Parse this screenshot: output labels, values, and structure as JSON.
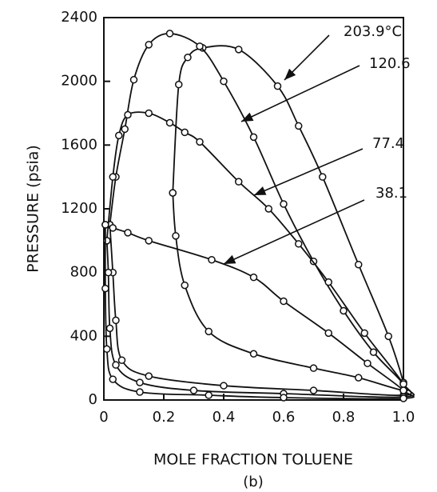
{
  "chart_data": {
    "type": "line",
    "x_label": "MOLE FRACTION TOLUENE",
    "y_label": "PRESSURE (psia)",
    "caption": "(b)",
    "xlim": [
      0,
      1
    ],
    "ylim": [
      0,
      2400
    ],
    "xticks": [
      0,
      0.2,
      0.4,
      0.6,
      0.8,
      {
        "value": 1,
        "label": "1.0"
      }
    ],
    "yticks": [
      0,
      400,
      800,
      1200,
      1600,
      2000,
      2400
    ],
    "color": "#111111",
    "series": [
      {
        "name": "203.9°C",
        "x": [
          0.23,
          0.25,
          0.28,
          0.33,
          0.45,
          0.58,
          0.65,
          0.73,
          0.85,
          0.95,
          1.0,
          1.0,
          0.85,
          0.7,
          0.5,
          0.35,
          0.27,
          0.24,
          0.23
        ],
        "y": [
          1300,
          1980,
          2150,
          2210,
          2200,
          1970,
          1720,
          1400,
          850,
          400,
          110,
          60,
          140,
          200,
          290,
          430,
          720,
          1030,
          1300
        ]
      },
      {
        "name": "120.6",
        "x": [
          0.02,
          0.04,
          0.07,
          0.1,
          0.15,
          0.22,
          0.32,
          0.4,
          0.5,
          0.6,
          0.7,
          0.8,
          0.9,
          1.0,
          1.0,
          0.7,
          0.4,
          0.15,
          0.06,
          0.04,
          0.03,
          0.02
        ],
        "y": [
          1100,
          1400,
          1700,
          2010,
          2230,
          2300,
          2220,
          2000,
          1650,
          1230,
          870,
          560,
          300,
          100,
          30,
          60,
          90,
          150,
          250,
          500,
          800,
          1100
        ]
      },
      {
        "name": "77.4",
        "x": [
          0.01,
          0.03,
          0.05,
          0.08,
          0.15,
          0.22,
          0.27,
          0.32,
          0.45,
          0.55,
          0.65,
          0.75,
          0.87,
          1.0,
          1.0,
          0.6,
          0.3,
          0.12,
          0.04,
          0.02,
          0.015,
          0.01
        ],
        "y": [
          1000,
          1400,
          1660,
          1790,
          1800,
          1740,
          1680,
          1620,
          1370,
          1200,
          980,
          740,
          420,
          100,
          20,
          40,
          60,
          110,
          220,
          450,
          800,
          1000
        ]
      },
      {
        "name": "38.1",
        "x": [
          0.005,
          0.03,
          0.08,
          0.15,
          0.36,
          0.5,
          0.6,
          0.75,
          0.88,
          1.0,
          1.0,
          0.6,
          0.35,
          0.12,
          0.03,
          0.01,
          0.005,
          0.005
        ],
        "y": [
          1100,
          1080,
          1050,
          1000,
          880,
          770,
          620,
          420,
          230,
          60,
          10,
          15,
          30,
          50,
          130,
          320,
          700,
          1100
        ]
      }
    ]
  }
}
